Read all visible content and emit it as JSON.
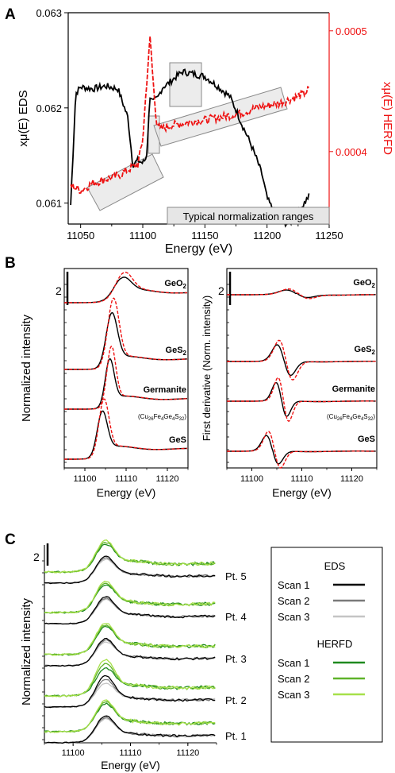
{
  "panel_labels": [
    "A",
    "B",
    "C"
  ],
  "chart_data": [
    {
      "panel": "A",
      "type": "line",
      "xlabel": "Energy (eV)",
      "ylabel_left": "xμ(E) EDS",
      "ylabel_right": "xμ(E) HERFD",
      "xlim": [
        11040,
        11250
      ],
      "ylim_left": [
        0.06078,
        0.063
      ],
      "ylim_right": [
        0.00034,
        0.000515
      ],
      "xticks": [
        "11050",
        "11100",
        "11150",
        "11200",
        "11250"
      ],
      "yticks_left": [
        "0.061",
        "0.062",
        "0.063"
      ],
      "yticks_right": [
        "0.0004",
        "0.0005"
      ],
      "annotation": "Typical normalization ranges",
      "series": [
        {
          "axis": "left",
          "color": "#000000",
          "style": "solid",
          "x": [
            11042,
            11046,
            11050,
            11060,
            11070,
            11080,
            11088,
            11092,
            11096,
            11100,
            11103,
            11106,
            11108,
            11112,
            11116,
            11120,
            11126,
            11132,
            11140,
            11150,
            11160,
            11170,
            11176,
            11180,
            11186,
            11192,
            11196,
            11200,
            11206,
            11212,
            11218,
            11222,
            11226,
            11230,
            11234
          ],
          "y": [
            0.06098,
            0.06215,
            0.06222,
            0.0622,
            0.06223,
            0.0622,
            0.0619,
            0.0614,
            0.06145,
            0.06142,
            0.06148,
            0.06215,
            0.06206,
            0.0621,
            0.06222,
            0.06225,
            0.06232,
            0.06238,
            0.06236,
            0.06233,
            0.06223,
            0.06212,
            0.06195,
            0.06182,
            0.06165,
            0.06145,
            0.0613,
            0.06105,
            0.0609,
            0.0608,
            0.06078,
            0.06085,
            0.06092,
            0.061,
            0.06108
          ]
        },
        {
          "axis": "right",
          "color": "#ee1111",
          "style": "dashed",
          "x": [
            11042,
            11050,
            11060,
            11070,
            11080,
            11090,
            11096,
            11100,
            11103,
            11106,
            11108,
            11111,
            11114,
            11118,
            11124,
            11132,
            11140,
            11150,
            11160,
            11170,
            11180,
            11190,
            11200,
            11210,
            11220,
            11225,
            11230,
            11234
          ],
          "y": [
            0.000372,
            0.000368,
            0.000374,
            0.000377,
            0.00038,
            0.000386,
            0.000389,
            0.00041,
            0.000455,
            0.000495,
            0.000462,
            0.000425,
            0.000418,
            0.00042,
            0.000422,
            0.000423,
            0.000425,
            0.000426,
            0.000428,
            0.00043,
            0.000432,
            0.000436,
            0.000438,
            0.00044,
            0.000444,
            0.000446,
            0.000448,
            0.000452
          ]
        }
      ]
    },
    {
      "panel": "B-left",
      "type": "line",
      "xlabel": "Energy (eV)",
      "ylabel": "Normalized intensity",
      "xlim": [
        11095,
        11125
      ],
      "xticks": [
        "11100",
        "11110",
        "11120"
      ],
      "scale_bar": "2",
      "series": [
        {
          "name": "GeO2",
          "label_main": "GeO",
          "label_sub": "2",
          "peak": 11109,
          "height": 0.8,
          "width": 2.8
        },
        {
          "name": "GeS2",
          "label_main": "GeS",
          "label_sub": "2",
          "peak": 11106.5,
          "height": 2.3,
          "width": 1.9
        },
        {
          "name": "Germanite",
          "label_main": "Germanite",
          "peak": 11106,
          "height": 2.0,
          "width": 1.5
        },
        {
          "name": "GeS",
          "label_main": "GeS",
          "peak": 11104.2,
          "height": 1.9,
          "width": 1.7
        }
      ]
    },
    {
      "panel": "B-right",
      "type": "line",
      "xlabel": "Energy (eV)",
      "ylabel": "First derivative (Norm. intensity)",
      "xlim": [
        11095,
        11125
      ],
      "xticks": [
        "11100",
        "11110",
        "11120"
      ],
      "scale_bar": "2"
    },
    {
      "panel": "C",
      "type": "line",
      "xlabel": "Energy (eV)",
      "ylabel": "Normalized intensity",
      "xlim": [
        11095,
        11125
      ],
      "xticks": [
        "11100",
        "11110",
        "11120"
      ],
      "scale_bar": "2",
      "categories": [
        "Pt. 5",
        "Pt. 4",
        "Pt. 3",
        "Pt. 2",
        "Pt. 1"
      ],
      "legend": {
        "groups": [
          {
            "title": "EDS",
            "items": [
              {
                "label": "Scan 1",
                "color": "#000000"
              },
              {
                "label": "Scan 2",
                "color": "#7a7a7a"
              },
              {
                "label": "Scan 3",
                "color": "#c4c4c4"
              }
            ]
          },
          {
            "title": "HERFD",
            "items": [
              {
                "label": "Scan 1",
                "color": "#1f8a1f"
              },
              {
                "label": "Scan 2",
                "color": "#5fb32a"
              },
              {
                "label": "Scan 3",
                "color": "#a6e04a"
              }
            ]
          }
        ]
      }
    }
  ],
  "formula": {
    "pre": "(Cu",
    "s1": "26",
    "m1": "Fe",
    "s2": "4",
    "m2": "Ge",
    "s3": "4",
    "m3": "S",
    "s4": "32",
    "post": ")"
  }
}
